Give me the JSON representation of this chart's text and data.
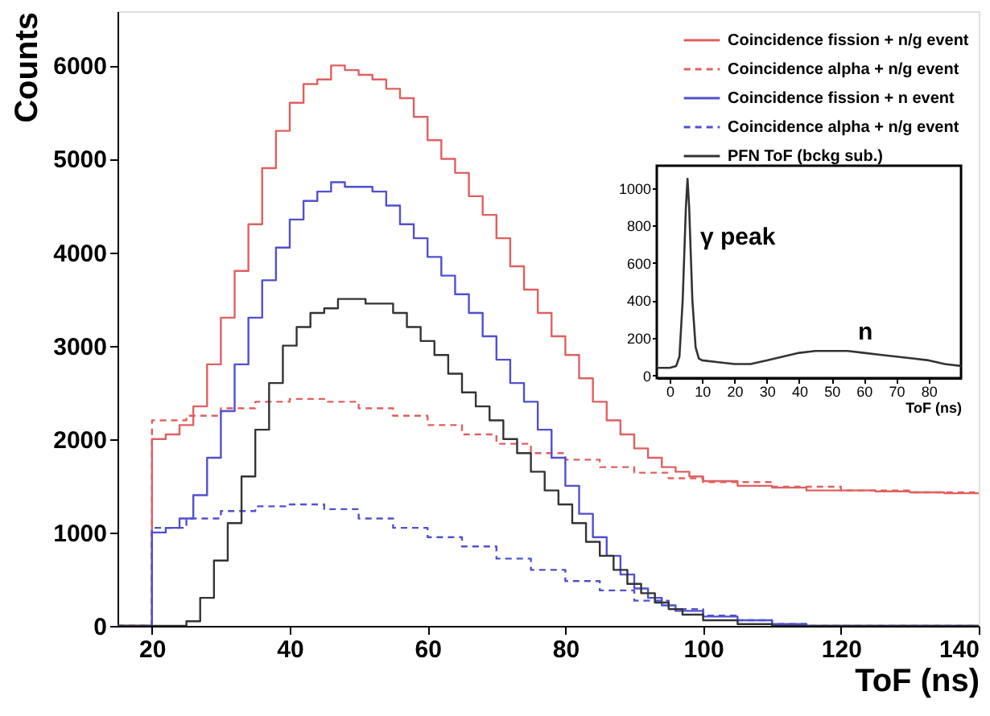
{
  "chart_data": [
    {
      "type": "step",
      "xlabel": "ToF (ns)",
      "ylabel": "Counts",
      "xlim": [
        15,
        140
      ],
      "ylim": [
        0,
        6580
      ],
      "xticks": [
        20,
        40,
        60,
        80,
        100,
        120,
        140
      ],
      "yticks": [
        0,
        1000,
        2000,
        3000,
        4000,
        5000,
        6000
      ],
      "legend": "top right",
      "grid": false,
      "series": [
        {
          "name": "Coincidence fission + n/g event",
          "color": "#e06060",
          "line_style": "solid",
          "x": [
            15,
            20,
            22,
            24,
            26,
            28,
            30,
            32,
            34,
            36,
            38,
            40,
            42,
            44,
            46,
            48,
            50,
            52,
            54,
            56,
            58,
            60,
            62,
            64,
            66,
            68,
            70,
            72,
            74,
            76,
            78,
            80,
            82,
            84,
            86,
            88,
            90,
            92,
            94,
            96,
            98,
            100,
            105,
            110,
            115,
            120,
            125,
            130,
            135,
            140
          ],
          "values": [
            0,
            2000,
            2050,
            2150,
            2350,
            2800,
            3300,
            3800,
            4300,
            4900,
            5300,
            5600,
            5800,
            5850,
            6000,
            5950,
            5900,
            5850,
            5750,
            5650,
            5450,
            5200,
            5000,
            4850,
            4600,
            4400,
            4150,
            3850,
            3600,
            3350,
            3100,
            2900,
            2650,
            2400,
            2200,
            2050,
            1900,
            1800,
            1700,
            1650,
            1600,
            1550,
            1500,
            1480,
            1450,
            1450,
            1440,
            1430,
            1420,
            1420
          ]
        },
        {
          "name": "Coincidence alpha + n/g event",
          "color": "#e06060",
          "line_style": "dashed",
          "x": [
            15,
            20,
            25,
            30,
            35,
            40,
            45,
            50,
            55,
            60,
            65,
            70,
            75,
            80,
            85,
            90,
            95,
            100,
            110,
            120,
            130,
            140
          ],
          "values": [
            0,
            2200,
            2250,
            2330,
            2400,
            2430,
            2400,
            2330,
            2250,
            2150,
            2050,
            1950,
            1850,
            1780,
            1700,
            1640,
            1580,
            1540,
            1490,
            1450,
            1430,
            1420
          ]
        },
        {
          "name": "Coincidence fission + n event",
          "color": "#5050d0",
          "line_style": "solid",
          "x": [
            15,
            20,
            22,
            24,
            26,
            28,
            30,
            32,
            34,
            36,
            38,
            40,
            42,
            44,
            46,
            48,
            50,
            52,
            54,
            56,
            58,
            60,
            62,
            64,
            66,
            68,
            70,
            72,
            74,
            76,
            78,
            80,
            82,
            84,
            86,
            88,
            90,
            92,
            94,
            96,
            100,
            105,
            110,
            115,
            140
          ],
          "values": [
            0,
            1000,
            1050,
            1150,
            1400,
            1800,
            2300,
            2800,
            3300,
            3700,
            4050,
            4350,
            4550,
            4650,
            4750,
            4700,
            4700,
            4650,
            4500,
            4300,
            4150,
            3950,
            3750,
            3550,
            3350,
            3100,
            2850,
            2600,
            2400,
            2100,
            1800,
            1500,
            1200,
            950,
            750,
            550,
            400,
            300,
            220,
            160,
            100,
            60,
            20,
            0,
            0
          ]
        },
        {
          "name": "Coincidence alpha + n/g event",
          "color": "#5050d0",
          "line_style": "dashed",
          "x": [
            15,
            20,
            25,
            30,
            35,
            40,
            45,
            50,
            55,
            60,
            65,
            70,
            75,
            80,
            85,
            90,
            95,
            100,
            105,
            110,
            115,
            140
          ],
          "values": [
            0,
            1050,
            1150,
            1230,
            1280,
            1300,
            1250,
            1150,
            1050,
            950,
            850,
            720,
            600,
            480,
            380,
            270,
            180,
            110,
            60,
            20,
            0,
            0
          ]
        },
        {
          "name": "PFN ToF (bckg sub.)",
          "color": "#333333",
          "line_style": "solid",
          "x": [
            15,
            25,
            27,
            29,
            31,
            33,
            35,
            37,
            39,
            41,
            43,
            45,
            47,
            49,
            51,
            53,
            55,
            57,
            59,
            61,
            63,
            65,
            67,
            69,
            71,
            73,
            75,
            77,
            79,
            81,
            83,
            85,
            87,
            89,
            91,
            93,
            95,
            97,
            100,
            105,
            110,
            140
          ],
          "values": [
            0,
            50,
            300,
            700,
            1100,
            1600,
            2100,
            2600,
            3000,
            3200,
            3350,
            3400,
            3500,
            3500,
            3450,
            3450,
            3350,
            3200,
            3050,
            2900,
            2700,
            2500,
            2350,
            2200,
            2000,
            1850,
            1650,
            1450,
            1300,
            1100,
            900,
            750,
            600,
            450,
            350,
            250,
            180,
            120,
            60,
            20,
            0,
            0
          ]
        }
      ]
    },
    {
      "type": "line",
      "xlabel": "ToF (ns)",
      "xlim": [
        -4,
        90
      ],
      "ylim": [
        -15,
        1120
      ],
      "xticks": [
        0,
        10,
        20,
        30,
        40,
        50,
        60,
        70,
        80
      ],
      "yticks": [
        0,
        200,
        400,
        600,
        800,
        1000
      ],
      "grid": false,
      "annotations": [
        "γ peak",
        "n"
      ],
      "series": [
        {
          "color": "#333333",
          "x": [
            -4,
            0,
            2,
            3,
            4,
            5,
            5.5,
            6,
            7,
            8,
            9,
            10,
            15,
            20,
            25,
            30,
            35,
            40,
            45,
            50,
            55,
            60,
            65,
            70,
            75,
            80,
            85,
            90
          ],
          "values": [
            40,
            40,
            50,
            100,
            400,
            900,
            1050,
            900,
            400,
            150,
            90,
            80,
            70,
            60,
            60,
            80,
            100,
            120,
            130,
            130,
            130,
            120,
            110,
            100,
            90,
            80,
            60,
            50
          ]
        }
      ]
    }
  ]
}
